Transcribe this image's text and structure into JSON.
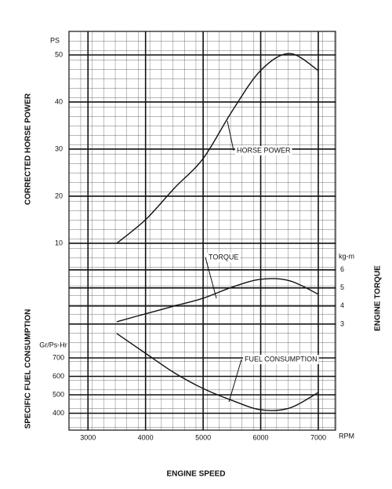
{
  "chart_data": {
    "type": "line",
    "x_label": "ENGINE SPEED",
    "x_unit": "RPM",
    "y_label": "CORRECTED HORSE POWER",
    "y_unit": "PS",
    "y2_label": "ENGINE TORQUE",
    "y2_unit": "kg-m",
    "y3_label": "SPECIFIC FUEL CONSUMPTION",
    "y3_unit": "Gr/Ps-Hr",
    "x": [
      3500,
      4000,
      4500,
      5000,
      5500,
      6000,
      6500,
      7000
    ],
    "xlim": [
      2670,
      7300
    ],
    "xticks": [
      3000,
      4000,
      5000,
      6000,
      7000
    ],
    "ylim": [
      -29.7,
      55
    ],
    "yticks": [
      10,
      20,
      30,
      40,
      50
    ],
    "y2lim": [
      -2.87,
      19.2
    ],
    "y2ticks": [
      3,
      4,
      5,
      6
    ],
    "y3lim": [
      308.5,
      2470
    ],
    "y3ticks": [
      400,
      500,
      600,
      700
    ],
    "grid": true,
    "series": [
      {
        "name": "HORSE POWER",
        "color": "#111111",
        "axis": "y",
        "values": [
          10,
          15,
          21.7,
          28,
          38,
          46.7,
          50.3,
          46.7
        ]
      },
      {
        "name": "TORQUE",
        "color": "#111111",
        "axis": "y2",
        "values": [
          3.13,
          3.57,
          4.0,
          4.43,
          5.04,
          5.48,
          5.4,
          4.65
        ]
      },
      {
        "name": "FUEL CONSUMPTION",
        "color": "#111111",
        "axis": "y3",
        "values": [
          832,
          725,
          619,
          534,
          470,
          419,
          428,
          513
        ]
      }
    ]
  }
}
